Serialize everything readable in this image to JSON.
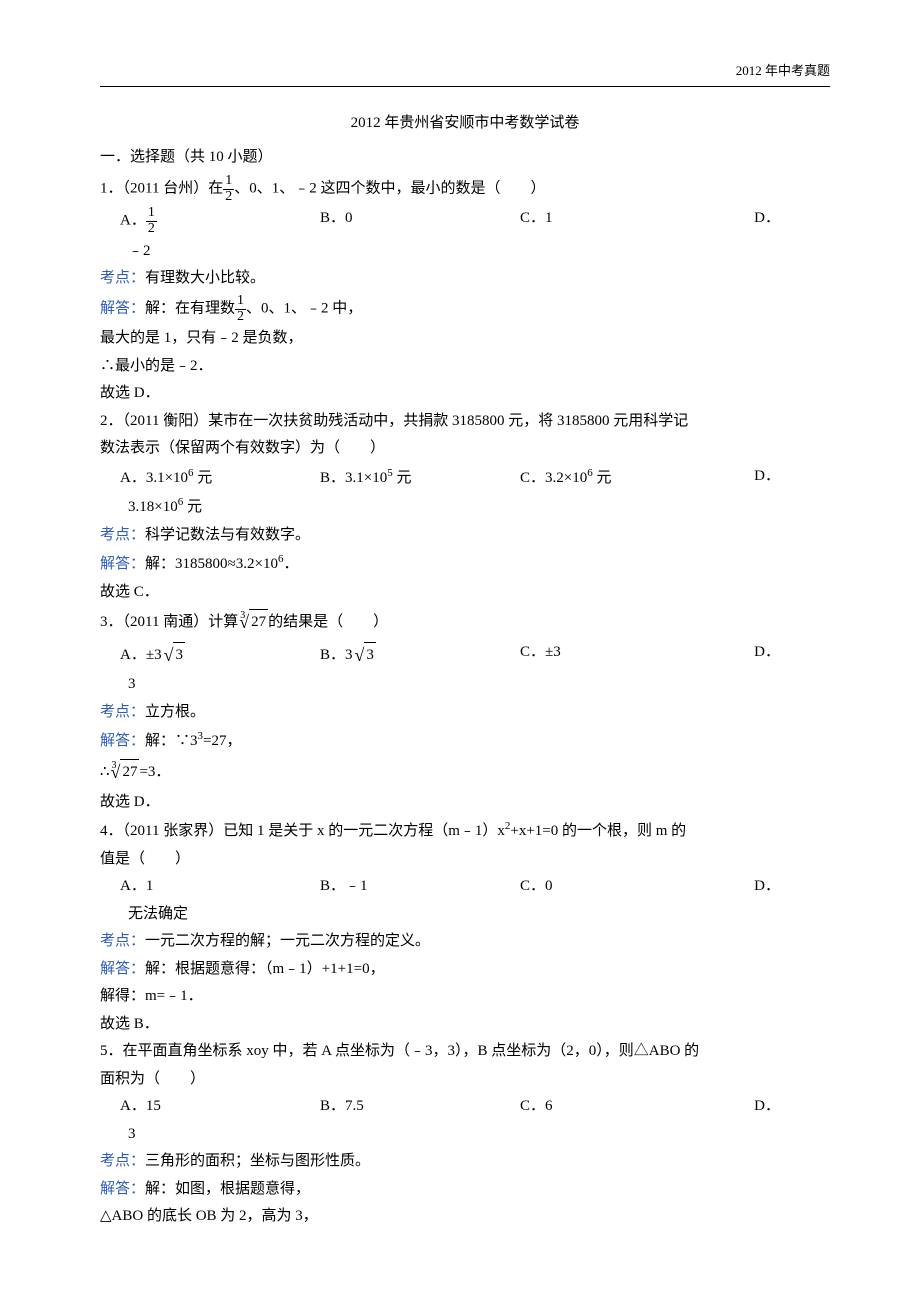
{
  "header": {
    "right": "2012 年中考真题"
  },
  "title": "2012 年贵州省安顺市中考数学试卷",
  "section1": "一．选择题（共 10 小题）",
  "q1": {
    "stem_pre": "1．（2011 台州）在",
    "stem_post": "、0、1、﹣2 这四个数中，最小的数是（　　）",
    "optA": "A．",
    "optB": "B．0",
    "optC": "C．1",
    "optD": "D．",
    "optD_cont": "﹣2",
    "kaodian_label": "考点：",
    "kaodian": "有理数大小比较。",
    "jieda_label": "解答：",
    "jieda_pre": "解：在有理数",
    "jieda_post": "、0、1、﹣2 中，",
    "l2": "最大的是 1，只有﹣2 是负数，",
    "l3": "∴最小的是﹣2．",
    "l4": "故选 D．"
  },
  "q2": {
    "stem1": "2．（2011 衡阳）某市在一次扶贫助残活动中，共捐款 3185800 元，将 3185800 元用科学记",
    "stem2": "数法表示（保留两个有效数字）为（　　）",
    "optA_pre": "A．3.1×10",
    "optA_suf": " 元",
    "optB_pre": "B．3.1×10",
    "optB_suf": " 元",
    "optC_pre": "C．3.2×10",
    "optC_suf": " 元",
    "optD": "D．",
    "optD_cont_pre": "3.18×10",
    "optD_cont_suf": " 元",
    "expA": "6",
    "expB": "5",
    "expC": "6",
    "expD": "6",
    "kaodian_label": "考点：",
    "kaodian": "科学记数法与有效数字。",
    "jieda_label": "解答：",
    "jieda_pre": "解：3185800≈3.2×10",
    "jieda_exp": "6",
    "jieda_post": "．",
    "l2": "故选 C．"
  },
  "q3": {
    "stem_pre": "3．（2011 南通）计算",
    "stem_post": "的结果是（　　）",
    "radicand": "27",
    "optA_pre": "A．±3",
    "optA_rad": "3",
    "optB_pre": "B．3",
    "optB_rad": "3",
    "optC": "C．±3",
    "optD": "D．",
    "optD_cont": "3",
    "kaodian_label": "考点：",
    "kaodian": "立方根。",
    "jieda_label": "解答：",
    "jieda_pre": "解：∵3",
    "jieda_exp": "3",
    "jieda_post": "=27，",
    "l2_pre": "∴",
    "l2_post": "=3．",
    "l3": "故选 D．"
  },
  "q4": {
    "stem1_pre": "4．（2011 张家界）已知 1 是关于 x 的一元二次方程（m﹣1）x",
    "stem1_exp": "2",
    "stem1_post": "+x+1=0 的一个根，则 m 的",
    "stem2": "值是（　　）",
    "optA": "A．1",
    "optB": "B．﹣1",
    "optC": "C．0",
    "optD": "D．",
    "optD_cont": "无法确定",
    "kaodian_label": "考点：",
    "kaodian": "一元二次方程的解；一元二次方程的定义。",
    "jieda_label": "解答：",
    "jieda": "解：根据题意得：（m﹣1）+1+1=0，",
    "l2": "解得：m=﹣1．",
    "l3": "故选 B．"
  },
  "q5": {
    "stem1": "5．在平面直角坐标系 xoy 中，若 A 点坐标为（﹣3，3），B 点坐标为（2，0），则△ABO 的",
    "stem2": "面积为（　　）",
    "optA": "A．15",
    "optB": "B．7.5",
    "optC": "C．6",
    "optD": "D．",
    "optD_cont": "3",
    "kaodian_label": "考点：",
    "kaodian": "三角形的面积；坐标与图形性质。",
    "jieda_label": "解答：",
    "jieda": "解：如图，根据题意得，",
    "l2": "△ABO 的底长 OB 为 2，高为 3，"
  },
  "frac": {
    "num": "1",
    "den": "2"
  },
  "colors": {
    "link": "#2e5cb8",
    "text": "#000000",
    "bg": "#ffffff"
  }
}
